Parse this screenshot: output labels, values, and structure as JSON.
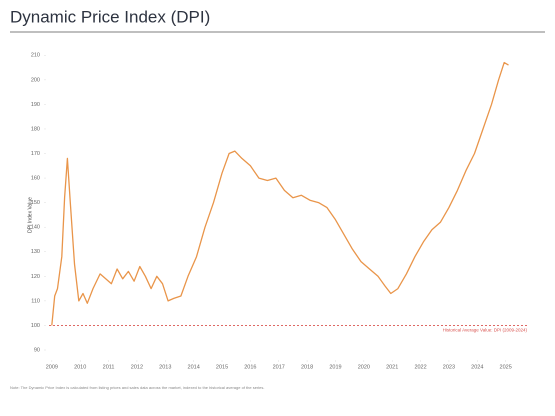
{
  "chart_data": {
    "type": "line",
    "title": "Dynamic Price Index (DPI)",
    "y_label": "DPI Index Value",
    "x": [
      2009.0,
      2009.1,
      2009.2,
      2009.35,
      2009.45,
      2009.55,
      2009.65,
      2009.8,
      2009.95,
      2010.1,
      2010.25,
      2010.45,
      2010.7,
      2010.9,
      2011.1,
      2011.3,
      2011.5,
      2011.7,
      2011.9,
      2012.1,
      2012.3,
      2012.5,
      2012.7,
      2012.9,
      2013.1,
      2013.3,
      2013.55,
      2013.8,
      2014.1,
      2014.4,
      2014.7,
      2015.0,
      2015.25,
      2015.45,
      2015.7,
      2016.0,
      2016.3,
      2016.6,
      2016.9,
      2017.2,
      2017.5,
      2017.8,
      2018.1,
      2018.4,
      2018.7,
      2019.0,
      2019.3,
      2019.6,
      2019.9,
      2020.2,
      2020.5,
      2020.75,
      2020.95,
      2021.2,
      2021.5,
      2021.8,
      2022.1,
      2022.4,
      2022.7,
      2023.0,
      2023.3,
      2023.6,
      2023.9,
      2024.2,
      2024.5,
      2024.75,
      2024.95,
      2025.1
    ],
    "series": [
      {
        "name": "DPI",
        "color": "#e9954a",
        "values": [
          100,
          112,
          115,
          128,
          152,
          168,
          150,
          125,
          110,
          113,
          109,
          115,
          121,
          119,
          117,
          123,
          119,
          122,
          118,
          124,
          120,
          115,
          120,
          117,
          110,
          111,
          112,
          120,
          128,
          140,
          150,
          162,
          170,
          171,
          168,
          165,
          160,
          159,
          160,
          155,
          152,
          153,
          151,
          150,
          148,
          143,
          137,
          131,
          126,
          123,
          120,
          116,
          113,
          115,
          121,
          128,
          134,
          139,
          142,
          148,
          155,
          163,
          170,
          180,
          190,
          200,
          207,
          206
        ]
      }
    ],
    "xlim": [
      2008.9,
      2025.4
    ],
    "xticks": [
      2009,
      2010,
      2011,
      2012,
      2013,
      2014,
      2015,
      2016,
      2017,
      2018,
      2019,
      2020,
      2021,
      2022,
      2023,
      2024,
      2025
    ],
    "ylim": [
      90,
      215
    ],
    "yticks": [
      90,
      100,
      110,
      120,
      130,
      140,
      150,
      160,
      170,
      180,
      190,
      200,
      210
    ],
    "reference_line": {
      "value": 100,
      "color": "#d9534f",
      "label": "Historical Average Value: DPI (2009-2024)"
    },
    "note": "Note: The Dynamic Price Index is calculated from listing prices and sales data across the market, indexed to the historical average of the series."
  }
}
